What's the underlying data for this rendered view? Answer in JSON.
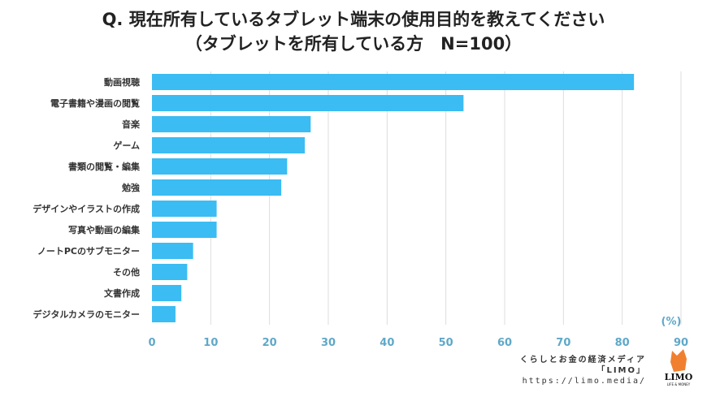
{
  "chart_data": {
    "type": "bar",
    "orientation": "horizontal",
    "title": "Q. 現在所有しているタブレット端末の使用目的を教えてください",
    "subtitle": "（タブレットを所有している方　N=100）",
    "categories": [
      "動画視聴",
      "電子書籍や漫画の閲覧",
      "音楽",
      "ゲーム",
      "書類の閲覧・編集",
      "勉強",
      "デザインやイラストの作成",
      "写真や動画の編集",
      "ノートPCのサブモニター",
      "その他",
      "文書作成",
      "デジタルカメラのモニター"
    ],
    "values": [
      82,
      53,
      27,
      26,
      23,
      22,
      11,
      11,
      7,
      6,
      5,
      4
    ],
    "xlim": [
      0,
      90
    ],
    "xticks": [
      0,
      10,
      20,
      30,
      40,
      50,
      60,
      70,
      80,
      90
    ],
    "unit_label": "(%)",
    "grid": true,
    "bar_color": "#3bbcf2",
    "tick_color": "#5fa8c8"
  },
  "footer": {
    "tagline": "くらしとお金の経済メディア",
    "brand": "「LIMO」",
    "url": "https://limo.media/",
    "logo_text": "LIMO",
    "logo_sub": "LIFE & MONEY"
  }
}
